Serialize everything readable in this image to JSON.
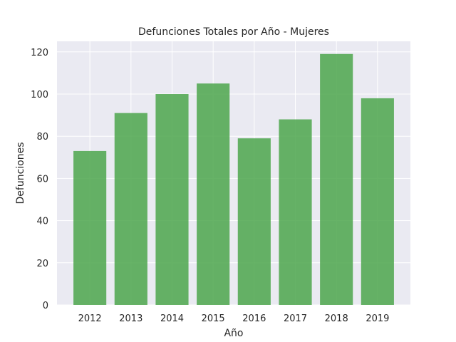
{
  "chart_data": {
    "type": "bar",
    "title": "Defunciones Totales por Año - Mujeres",
    "xlabel": "Año",
    "ylabel": "Defunciones",
    "categories": [
      "2012",
      "2013",
      "2014",
      "2015",
      "2016",
      "2017",
      "2018",
      "2019"
    ],
    "values": [
      73,
      91,
      100,
      105,
      79,
      88,
      119,
      98
    ],
    "ylim": [
      0,
      125
    ],
    "yticks": [
      0,
      20,
      40,
      60,
      80,
      100,
      120
    ],
    "grid": true,
    "bar_color": "#4ca64c",
    "background_color": "#eaeaf2"
  }
}
